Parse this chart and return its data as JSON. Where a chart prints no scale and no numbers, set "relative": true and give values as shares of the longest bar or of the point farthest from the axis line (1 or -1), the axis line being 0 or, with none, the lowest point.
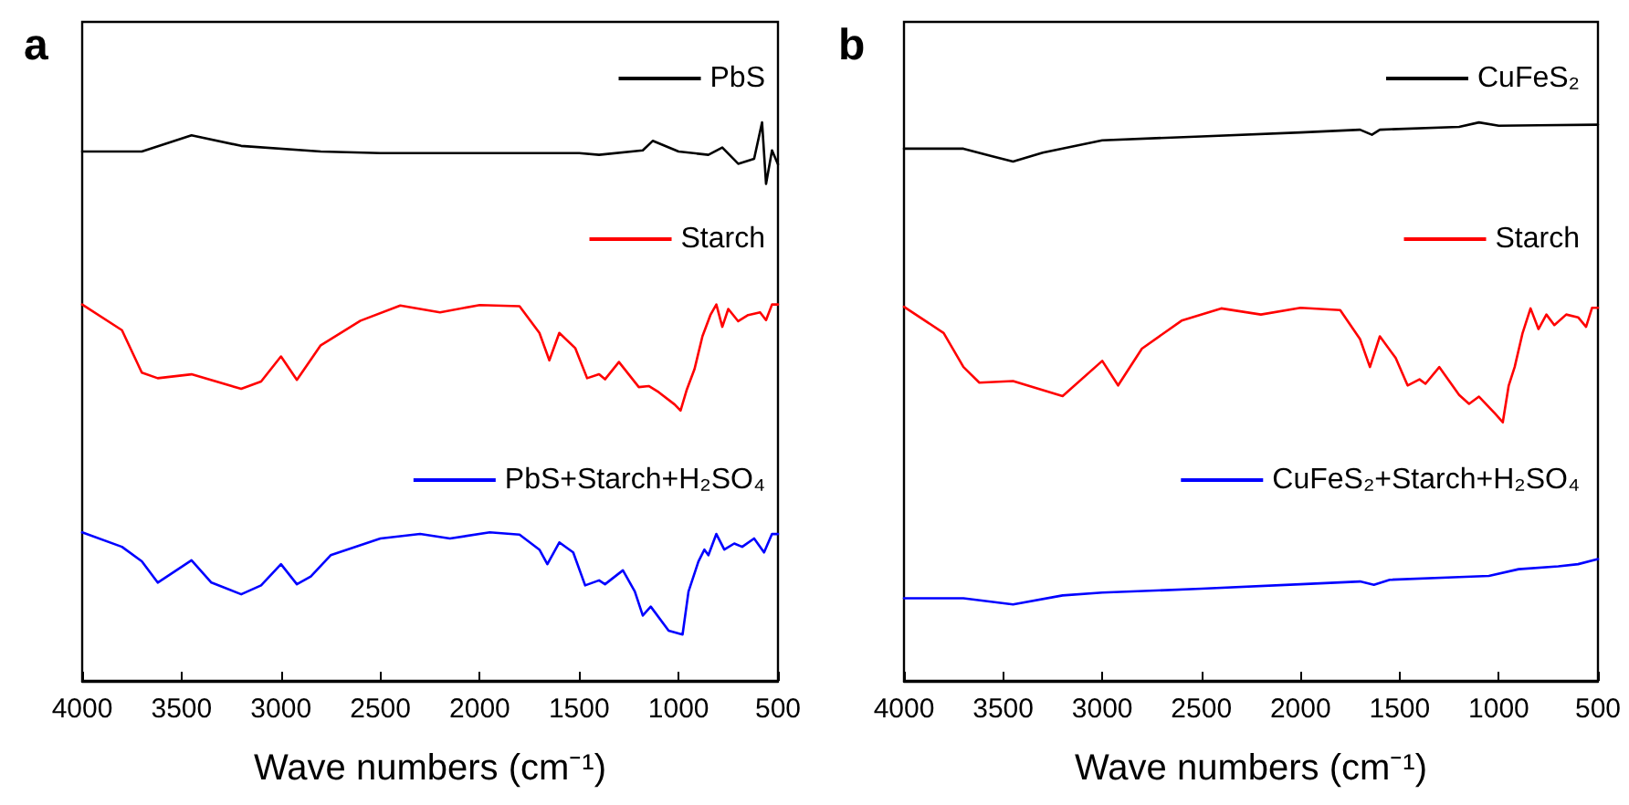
{
  "chart_data": [
    {
      "type": "line",
      "title": "a",
      "xlabel": "Wave numbers (cm⁻¹)",
      "relative": true,
      "xlim": [
        4000,
        500
      ],
      "xticks": [
        4000,
        3500,
        3000,
        2500,
        2000,
        1500,
        1000,
        500
      ],
      "legend": "top right",
      "line_style": "solid",
      "marker": "none",
      "series": [
        {
          "name": "PbS",
          "color": "#000000",
          "x": [
            4000,
            3700,
            3450,
            3200,
            2800,
            2500,
            2100,
            1500,
            1400,
            1180,
            1130,
            1000,
            850,
            780,
            700,
            620,
            580,
            560,
            530,
            500
          ],
          "values": [
            0.948,
            0.948,
            0.977,
            0.958,
            0.948,
            0.945,
            0.945,
            0.945,
            0.942,
            0.95,
            0.967,
            0.948,
            0.942,
            0.955,
            0.926,
            0.935,
            1.0,
            0.89,
            0.95,
            0.925
          ]
        },
        {
          "name": "Starch",
          "color": "#ff0000",
          "x": [
            4000,
            3800,
            3700,
            3620,
            3450,
            3200,
            3100,
            3000,
            2920,
            2800,
            2600,
            2400,
            2200,
            2000,
            1800,
            1700,
            1650,
            1600,
            1520,
            1460,
            1400,
            1370,
            1300,
            1200,
            1150,
            1100,
            1020,
            990,
            960,
            920,
            880,
            840,
            810,
            780,
            750,
            700,
            650,
            590,
            560,
            530,
            500
          ],
          "values": [
            0.674,
            0.628,
            0.552,
            0.542,
            0.549,
            0.523,
            0.536,
            0.581,
            0.539,
            0.601,
            0.645,
            0.672,
            0.66,
            0.673,
            0.671,
            0.623,
            0.574,
            0.623,
            0.596,
            0.542,
            0.549,
            0.54,
            0.571,
            0.526,
            0.528,
            0.517,
            0.495,
            0.484,
            0.52,
            0.558,
            0.617,
            0.655,
            0.674,
            0.634,
            0.666,
            0.644,
            0.655,
            0.66,
            0.646,
            0.674,
            0.674
          ]
        },
        {
          "name": "PbS+Starch+H₂SO₄",
          "color": "#0000ff",
          "x": [
            4000,
            3800,
            3700,
            3620,
            3450,
            3350,
            3200,
            3100,
            3000,
            2920,
            2850,
            2750,
            2500,
            2300,
            2150,
            1950,
            1800,
            1700,
            1660,
            1600,
            1530,
            1470,
            1400,
            1370,
            1280,
            1220,
            1180,
            1140,
            1050,
            980,
            950,
            900,
            870,
            850,
            810,
            770,
            720,
            680,
            620,
            570,
            530,
            500
          ],
          "values": [
            0.266,
            0.24,
            0.214,
            0.176,
            0.216,
            0.176,
            0.155,
            0.171,
            0.209,
            0.173,
            0.187,
            0.225,
            0.255,
            0.263,
            0.255,
            0.266,
            0.262,
            0.235,
            0.209,
            0.248,
            0.23,
            0.171,
            0.18,
            0.173,
            0.198,
            0.16,
            0.117,
            0.133,
            0.09,
            0.083,
            0.16,
            0.214,
            0.235,
            0.225,
            0.263,
            0.235,
            0.246,
            0.24,
            0.255,
            0.23,
            0.263,
            0.263
          ]
        }
      ]
    },
    {
      "type": "line",
      "title": "b",
      "xlabel": "Wave numbers (cm⁻¹)",
      "relative": true,
      "xlim": [
        4000,
        500
      ],
      "xticks": [
        4000,
        3500,
        3000,
        2500,
        2000,
        1500,
        1000,
        500
      ],
      "legend": "top right",
      "line_style": "solid",
      "marker": "none",
      "series": [
        {
          "name": "CuFeS₂",
          "color": "#000000",
          "x": [
            4000,
            3700,
            3550,
            3450,
            3300,
            3000,
            2500,
            2000,
            1700,
            1640,
            1600,
            1200,
            1100,
            1000,
            800,
            500
          ],
          "values": [
            0.953,
            0.953,
            0.939,
            0.93,
            0.946,
            0.968,
            0.975,
            0.982,
            0.987,
            0.978,
            0.987,
            0.992,
            1.0,
            0.994,
            0.995,
            0.996
          ]
        },
        {
          "name": "Starch",
          "color": "#ff0000",
          "x": [
            4000,
            3800,
            3700,
            3620,
            3450,
            3200,
            3000,
            2920,
            2800,
            2600,
            2400,
            2200,
            2000,
            1800,
            1700,
            1650,
            1600,
            1520,
            1460,
            1400,
            1370,
            1300,
            1200,
            1150,
            1100,
            1020,
            980,
            950,
            920,
            880,
            840,
            800,
            760,
            720,
            660,
            600,
            560,
            530,
            500
          ],
          "values": [
            0.67,
            0.623,
            0.562,
            0.534,
            0.537,
            0.51,
            0.573,
            0.529,
            0.595,
            0.645,
            0.667,
            0.656,
            0.668,
            0.664,
            0.612,
            0.562,
            0.617,
            0.578,
            0.529,
            0.54,
            0.532,
            0.562,
            0.512,
            0.496,
            0.509,
            0.479,
            0.463,
            0.529,
            0.562,
            0.623,
            0.667,
            0.63,
            0.656,
            0.637,
            0.656,
            0.651,
            0.634,
            0.668,
            0.668
          ]
        },
        {
          "name": "CuFeS₂+Starch+H₂SO₄",
          "color": "#0000ff",
          "x": [
            4000,
            3700,
            3450,
            3200,
            3000,
            2500,
            2000,
            1700,
            1630,
            1550,
            1200,
            1050,
            900,
            700,
            600,
            500
          ],
          "values": [
            0.148,
            0.148,
            0.137,
            0.153,
            0.158,
            0.165,
            0.173,
            0.178,
            0.172,
            0.181,
            0.186,
            0.188,
            0.2,
            0.205,
            0.209,
            0.218
          ]
        }
      ]
    }
  ]
}
